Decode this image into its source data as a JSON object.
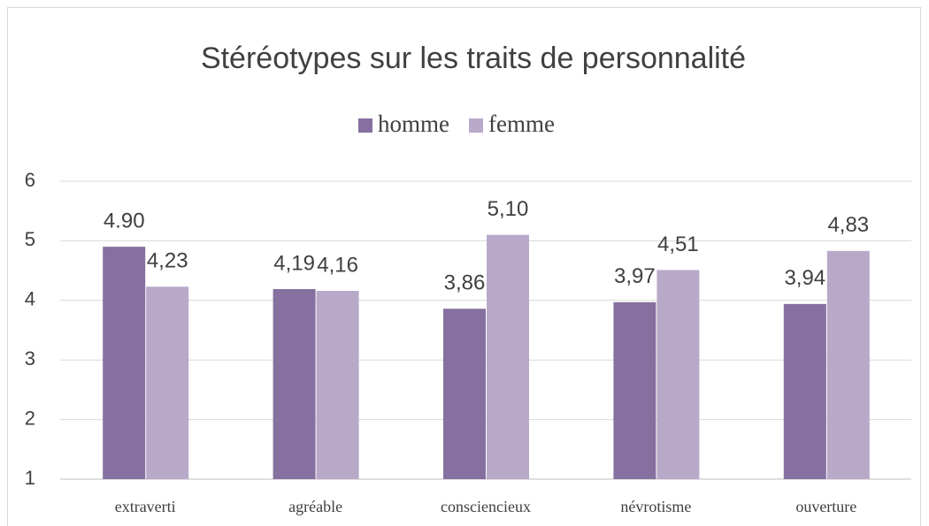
{
  "chart_data": {
    "type": "bar",
    "title": "Stéréotypes sur les traits de personnalité",
    "categories": [
      "extraverti",
      "agréable",
      "consciencieux",
      "névrotisme",
      "ouverture"
    ],
    "series": [
      {
        "name": "homme",
        "color": "#8570a0",
        "values": [
          4.9,
          4.19,
          3.86,
          3.97,
          3.94
        ],
        "value_labels": [
          "4.90",
          "4,19",
          "3,86",
          "3,97",
          "3,94"
        ]
      },
      {
        "name": "femme",
        "color": "#b8a9c9",
        "values": [
          4.23,
          4.16,
          5.1,
          4.51,
          4.83
        ],
        "value_labels": [
          "4,23",
          "4,16",
          "5,10",
          "4,51",
          "4,83"
        ]
      }
    ],
    "ylim": [
      1,
      6
    ],
    "yticks": [
      1,
      2,
      3,
      4,
      5,
      6
    ],
    "grid": true,
    "legend": "top"
  }
}
